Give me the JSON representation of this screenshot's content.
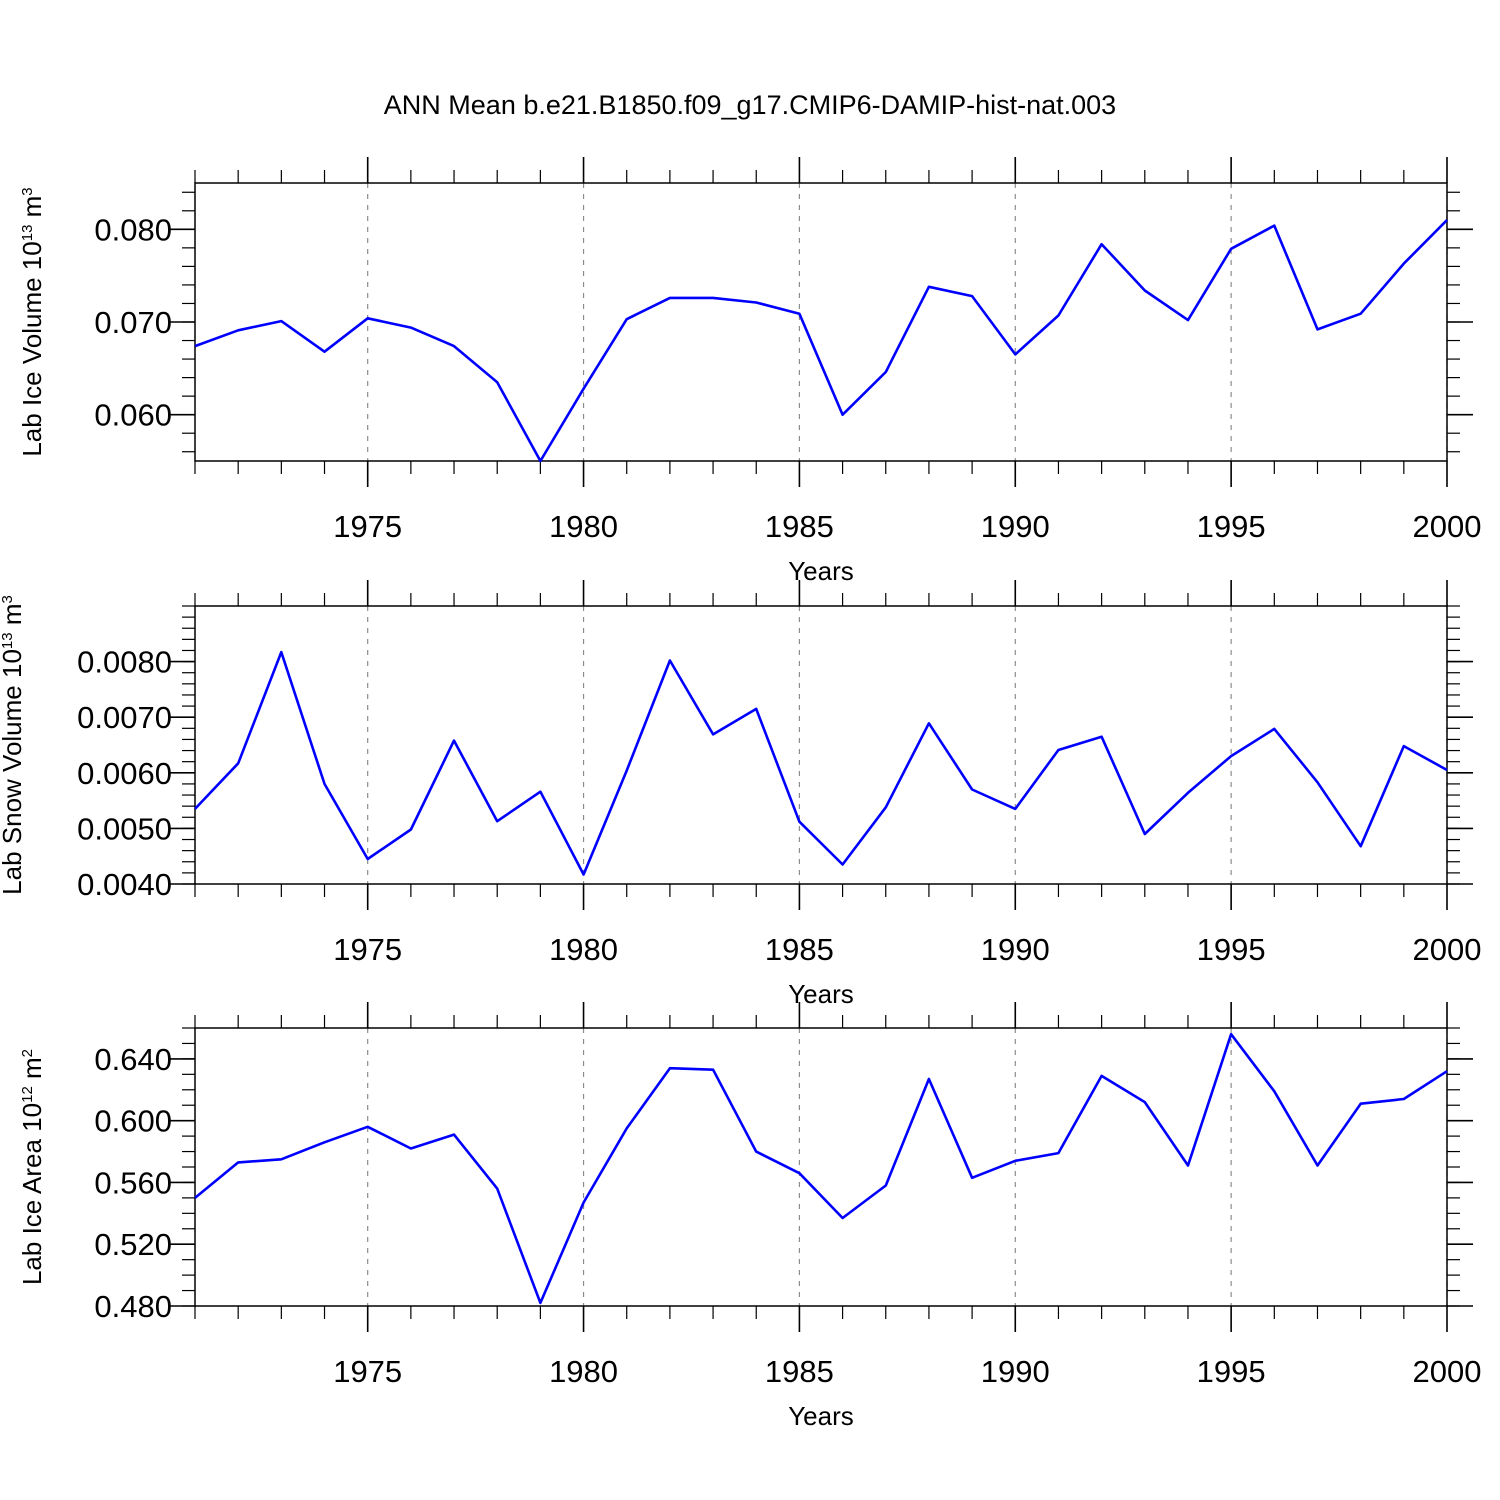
{
  "title": "ANN Mean b.e21.B1850.f09_g17.CMIP6-DAMIP-hist-nat.003",
  "line_color": "#0000ff",
  "grid_color": "#8c8c8c",
  "chart_data": [
    {
      "type": "line",
      "series": [
        {
          "values": [
            0.0674,
            0.0691,
            0.0701,
            0.0668,
            0.0704,
            0.0694,
            0.0674,
            0.0635,
            0.055,
            0.0628,
            0.0703,
            0.0726,
            0.0726,
            0.0721,
            0.0709,
            0.06,
            0.0646,
            0.0738,
            0.0728,
            0.0665,
            0.0707,
            0.0784,
            0.0734,
            0.0702,
            0.0779,
            0.0804,
            0.0692,
            0.0709,
            0.0763,
            0.081
          ]
        }
      ],
      "x": [
        1971,
        1972,
        1973,
        1974,
        1975,
        1976,
        1977,
        1978,
        1979,
        1980,
        1981,
        1982,
        1983,
        1984,
        1985,
        1986,
        1987,
        1988,
        1989,
        1990,
        1991,
        1992,
        1993,
        1994,
        1995,
        1996,
        1997,
        1998,
        1999,
        2000
      ],
      "xlim": [
        1971,
        2000
      ],
      "ylim": [
        0.055,
        0.085
      ],
      "xticks": [
        "1975",
        "1980",
        "1985",
        "1990",
        "1995",
        "2000"
      ],
      "yticks": [
        "0.060",
        "0.070",
        "0.080"
      ],
      "xlabel": "Years",
      "ylabel": {
        "text": "Lab Ice Volume 10",
        "exp": "13",
        "unit": " m",
        "unit_exp": "3"
      },
      "grid": "vertical dashed at major x ticks"
    },
    {
      "type": "line",
      "series": [
        {
          "values": [
            0.00535,
            0.00617,
            0.00817,
            0.0058,
            0.00445,
            0.00498,
            0.00658,
            0.00513,
            0.00566,
            0.00417,
            0.00604,
            0.00802,
            0.00669,
            0.00715,
            0.00512,
            0.00435,
            0.00538,
            0.00689,
            0.0057,
            0.00535,
            0.00641,
            0.00665,
            0.0049,
            0.00564,
            0.0063,
            0.00679,
            0.00583,
            0.00468,
            0.00648,
            0.00605
          ]
        }
      ],
      "x": [
        1971,
        1972,
        1973,
        1974,
        1975,
        1976,
        1977,
        1978,
        1979,
        1980,
        1981,
        1982,
        1983,
        1984,
        1985,
        1986,
        1987,
        1988,
        1989,
        1990,
        1991,
        1992,
        1993,
        1994,
        1995,
        1996,
        1997,
        1998,
        1999,
        2000
      ],
      "xlim": [
        1971,
        2000
      ],
      "ylim": [
        0.004,
        0.009
      ],
      "xticks": [
        "1975",
        "1980",
        "1985",
        "1990",
        "1995",
        "2000"
      ],
      "yticks": [
        "0.0040",
        "0.0050",
        "0.0060",
        "0.0070",
        "0.0080"
      ],
      "xlabel": "Years",
      "ylabel": {
        "text": "Lab Snow Volume 10",
        "exp": "13",
        "unit": " m",
        "unit_exp": "3"
      },
      "grid": "vertical dashed at major x ticks"
    },
    {
      "type": "line",
      "series": [
        {
          "values": [
            0.55,
            0.573,
            0.575,
            0.586,
            0.596,
            0.582,
            0.591,
            0.556,
            0.482,
            0.547,
            0.595,
            0.634,
            0.633,
            0.58,
            0.566,
            0.537,
            0.558,
            0.627,
            0.563,
            0.574,
            0.579,
            0.629,
            0.612,
            0.571,
            0.656,
            0.619,
            0.571,
            0.611,
            0.614,
            0.632
          ]
        }
      ],
      "x": [
        1971,
        1972,
        1973,
        1974,
        1975,
        1976,
        1977,
        1978,
        1979,
        1980,
        1981,
        1982,
        1983,
        1984,
        1985,
        1986,
        1987,
        1988,
        1989,
        1990,
        1991,
        1992,
        1993,
        1994,
        1995,
        1996,
        1997,
        1998,
        1999,
        2000
      ],
      "xlim": [
        1971,
        2000
      ],
      "ylim": [
        0.48,
        0.66
      ],
      "xticks": [
        "1975",
        "1980",
        "1985",
        "1990",
        "1995",
        "2000"
      ],
      "yticks": [
        "0.480",
        "0.520",
        "0.560",
        "0.600",
        "0.640"
      ],
      "xlabel": "Years",
      "ylabel": {
        "text": "Lab Ice Area 10",
        "exp": "12",
        "unit": " m",
        "unit_exp": "2"
      },
      "grid": "vertical dashed at major x ticks"
    }
  ]
}
